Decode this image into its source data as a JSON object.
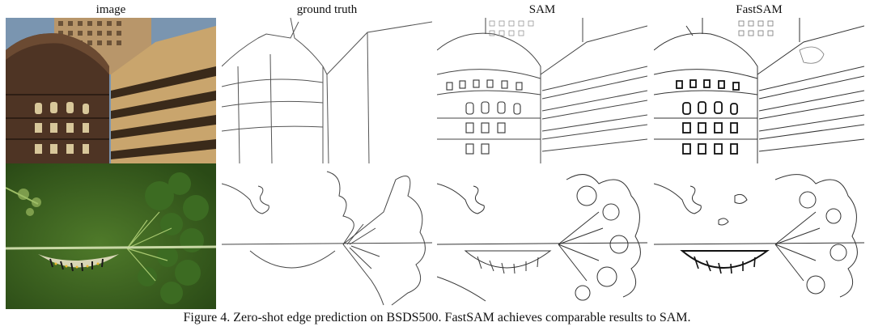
{
  "figure": {
    "columns": [
      "image",
      "ground truth",
      "SAM",
      "FastSAM"
    ],
    "caption": "Figure 4. Zero-shot edge prediction on BSDS500. FastSAM achieves comparable results to SAM."
  }
}
